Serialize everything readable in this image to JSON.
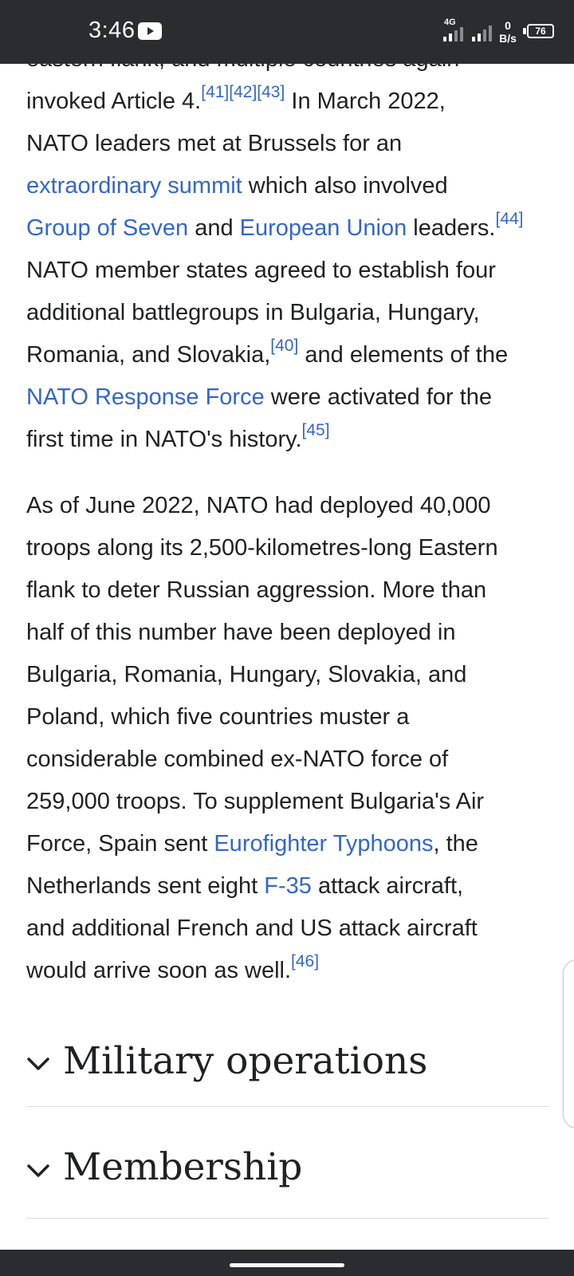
{
  "status_bar": {
    "time": "3:46",
    "network": "4G",
    "speed_value": "0",
    "speed_unit": "B/s",
    "battery": "76"
  },
  "article": {
    "cut_line": "eastern flank, and multiple countries again",
    "para1": {
      "l1_a": "invoked Article 4.",
      "ref_41": "[41]",
      "ref_42": "[42]",
      "ref_43": "[43]",
      "l1_b": " In March 2022,",
      "l2": "NATO leaders met at Brussels for an",
      "link_extraordinary": "extraordinary summit",
      "l3_b": " which also involved",
      "link_g7": "Group of Seven",
      "l4_a": " and ",
      "link_eu": "European Union",
      "l4_b": " leaders.",
      "ref_44": "[44]",
      "l5": "NATO member states agreed to establish four",
      "l6": "additional battlegroups in Bulgaria, Hungary,",
      "l7_a": "Romania, and Slovakia,",
      "ref_40": "[40]",
      "l7_b": " and elements of the",
      "link_nrf": "NATO Response Force",
      "l8_b": " were activated for the",
      "l9": "first time in NATO's history.",
      "ref_45": "[45]"
    },
    "para2": {
      "l1": "As of June 2022, NATO had deployed 40,000",
      "l2": "troops along its 2,500-kilometres-long Eastern",
      "l3": "flank to deter Russian aggression. More than",
      "l4": "half of this number have been deployed in",
      "l5": "Bulgaria, Romania, Hungary, Slovakia, and",
      "l6": "Poland, which five countries muster a",
      "l7": "considerable combined ex-NATO force of",
      "l8": "259,000 troops. To supplement Bulgaria's Air",
      "l9_a": "Force, Spain sent ",
      "link_eurofighter": "Eurofighter Typhoons",
      "l9_b": ", the",
      "l10_a": "Netherlands sent eight ",
      "link_f35": "F-35",
      "l10_b": " attack aircraft,",
      "l11": "and additional French and US attack aircraft",
      "l12": "would arrive soon as well.",
      "ref_46": "[46]"
    }
  },
  "sections": {
    "military": "Military operations",
    "membership": "Membership"
  },
  "colors": {
    "link": "#3366cc",
    "text": "#202122",
    "status_bar": "#2b2c30",
    "divider": "#dadde3"
  },
  "icons": {
    "youtube": "youtube-icon",
    "chevron": "chevron-down-icon"
  }
}
